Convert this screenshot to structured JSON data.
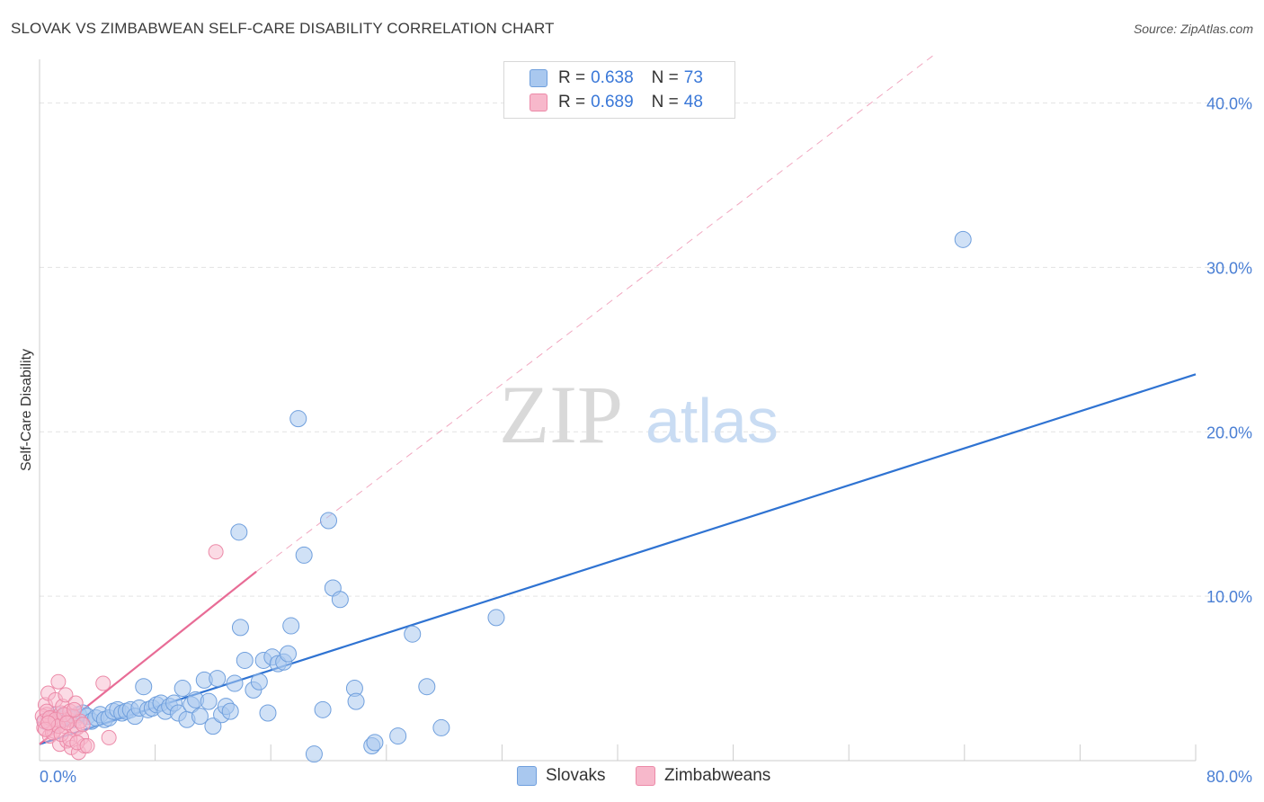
{
  "title": "SLOVAK VS ZIMBABWEAN SELF-CARE DISABILITY CORRELATION CHART",
  "source": "Source: ZipAtlas.com",
  "watermark": {
    "zip": "ZIP",
    "atlas": "atlas"
  },
  "legend": {
    "rows": [
      {
        "r_label": "R = ",
        "r_value": "0.638",
        "n_label": "N = ",
        "n_value": "73"
      },
      {
        "r_label": "R = ",
        "r_value": "0.689",
        "n_label": "N = ",
        "n_value": "48"
      }
    ]
  },
  "bottom_legend": {
    "slovaks": "Slovaks",
    "zimbabweans": "Zimbabweans"
  },
  "colors": {
    "blue_fill": "#a9c8ef",
    "blue_stroke": "#6f9fdd",
    "blue_line": "#2f73d2",
    "pink_fill": "#f7b8cb",
    "pink_stroke": "#ec8aa8",
    "pink_line": "#e86c96",
    "axis_text": "#4a7fd4",
    "grid": "#e3e3e3"
  },
  "chart_data": {
    "type": "scatter",
    "title": "SLOVAK VS ZIMBABWEAN SELF-CARE DISABILITY CORRELATION CHART",
    "xlabel": "",
    "ylabel": "Self-Care Disability",
    "xlim": [
      0,
      80
    ],
    "ylim": [
      0,
      42
    ],
    "x_tick_labels": [
      "0.0%",
      "80.0%"
    ],
    "y_ticks": [
      10,
      20,
      30,
      40
    ],
    "y_tick_labels": [
      "10.0%",
      "20.0%",
      "30.0%",
      "40.0%"
    ],
    "grid": true,
    "series": [
      {
        "name": "Slovaks",
        "R": 0.638,
        "N": 73,
        "trend": {
          "x": [
            0,
            80
          ],
          "y": [
            1.0,
            23.5
          ]
        },
        "points": [
          [
            0.4,
            2.4
          ],
          [
            0.8,
            2.6
          ],
          [
            1.0,
            2.2
          ],
          [
            1.2,
            2.8
          ],
          [
            1.5,
            2.5
          ],
          [
            1.8,
            2.7
          ],
          [
            2.1,
            2.6
          ],
          [
            2.4,
            2.5
          ],
          [
            2.7,
            2.8
          ],
          [
            3.0,
            2.9
          ],
          [
            3.3,
            2.7
          ],
          [
            3.6,
            2.4
          ],
          [
            3.9,
            2.6
          ],
          [
            4.2,
            2.8
          ],
          [
            4.5,
            2.5
          ],
          [
            4.8,
            2.6
          ],
          [
            5.1,
            3.0
          ],
          [
            5.4,
            3.1
          ],
          [
            5.7,
            2.9
          ],
          [
            6.0,
            3.0
          ],
          [
            6.3,
            3.1
          ],
          [
            6.6,
            2.7
          ],
          [
            6.9,
            3.2
          ],
          [
            7.2,
            4.5
          ],
          [
            7.5,
            3.1
          ],
          [
            7.8,
            3.2
          ],
          [
            8.1,
            3.4
          ],
          [
            8.4,
            3.5
          ],
          [
            8.7,
            3.0
          ],
          [
            9.0,
            3.3
          ],
          [
            9.3,
            3.5
          ],
          [
            9.6,
            2.9
          ],
          [
            9.9,
            4.4
          ],
          [
            10.2,
            2.5
          ],
          [
            10.5,
            3.4
          ],
          [
            10.8,
            3.7
          ],
          [
            11.1,
            2.7
          ],
          [
            11.4,
            4.9
          ],
          [
            11.7,
            3.6
          ],
          [
            12.0,
            2.1
          ],
          [
            12.3,
            5.0
          ],
          [
            12.6,
            2.8
          ],
          [
            12.9,
            3.3
          ],
          [
            13.2,
            3.0
          ],
          [
            13.5,
            4.7
          ],
          [
            13.8,
            13.9
          ],
          [
            13.9,
            8.1
          ],
          [
            14.2,
            6.1
          ],
          [
            14.8,
            4.3
          ],
          [
            15.2,
            4.8
          ],
          [
            15.5,
            6.1
          ],
          [
            15.8,
            2.9
          ],
          [
            16.1,
            6.3
          ],
          [
            16.5,
            5.9
          ],
          [
            16.9,
            6.0
          ],
          [
            17.2,
            6.5
          ],
          [
            17.4,
            8.2
          ],
          [
            17.9,
            20.8
          ],
          [
            18.3,
            12.5
          ],
          [
            19.0,
            0.4
          ],
          [
            19.6,
            3.1
          ],
          [
            20.0,
            14.6
          ],
          [
            20.3,
            10.5
          ],
          [
            20.8,
            9.8
          ],
          [
            21.8,
            4.4
          ],
          [
            21.9,
            3.6
          ],
          [
            23.0,
            0.9
          ],
          [
            23.2,
            1.1
          ],
          [
            24.8,
            1.5
          ],
          [
            25.8,
            7.7
          ],
          [
            26.8,
            4.5
          ],
          [
            27.8,
            2.0
          ],
          [
            31.6,
            8.7
          ],
          [
            63.9,
            31.7
          ]
        ]
      },
      {
        "name": "Zimbabweans",
        "R": 0.689,
        "N": 48,
        "trend": {
          "x": [
            0,
            15
          ],
          "y": [
            1.0,
            11.5
          ],
          "extended_to": [
            62,
            43
          ]
        },
        "points": [
          [
            0.3,
            2.0
          ],
          [
            0.4,
            3.4
          ],
          [
            0.5,
            2.8
          ],
          [
            0.6,
            4.1
          ],
          [
            0.7,
            1.5
          ],
          [
            0.8,
            2.2
          ],
          [
            0.9,
            2.6
          ],
          [
            1.0,
            1.8
          ],
          [
            1.1,
            3.7
          ],
          [
            1.2,
            2.3
          ],
          [
            1.3,
            4.8
          ],
          [
            1.4,
            1.0
          ],
          [
            1.5,
            2.9
          ],
          [
            1.6,
            3.3
          ],
          [
            1.7,
            2.1
          ],
          [
            1.8,
            4.0
          ],
          [
            1.9,
            1.2
          ],
          [
            2.0,
            2.5
          ],
          [
            2.1,
            3.0
          ],
          [
            2.2,
            0.8
          ],
          [
            2.3,
            2.7
          ],
          [
            2.4,
            1.9
          ],
          [
            2.5,
            3.5
          ],
          [
            2.6,
            2.0
          ],
          [
            2.7,
            0.5
          ],
          [
            2.8,
            2.4
          ],
          [
            2.9,
            1.4
          ],
          [
            3.0,
            2.2
          ],
          [
            3.1,
            0.9
          ],
          [
            0.2,
            2.7
          ],
          [
            0.3,
            2.4
          ],
          [
            0.5,
            3.0
          ],
          [
            0.7,
            2.6
          ],
          [
            0.9,
            1.7
          ],
          [
            1.1,
            2.5
          ],
          [
            1.3,
            2.1
          ],
          [
            1.5,
            1.6
          ],
          [
            1.7,
            2.8
          ],
          [
            1.9,
            2.3
          ],
          [
            2.1,
            1.3
          ],
          [
            2.4,
            3.1
          ],
          [
            2.6,
            1.1
          ],
          [
            3.3,
            0.9
          ],
          [
            4.4,
            4.7
          ],
          [
            4.8,
            1.4
          ],
          [
            12.2,
            12.7
          ],
          [
            0.4,
            1.9
          ],
          [
            0.6,
            2.3
          ]
        ]
      }
    ]
  }
}
